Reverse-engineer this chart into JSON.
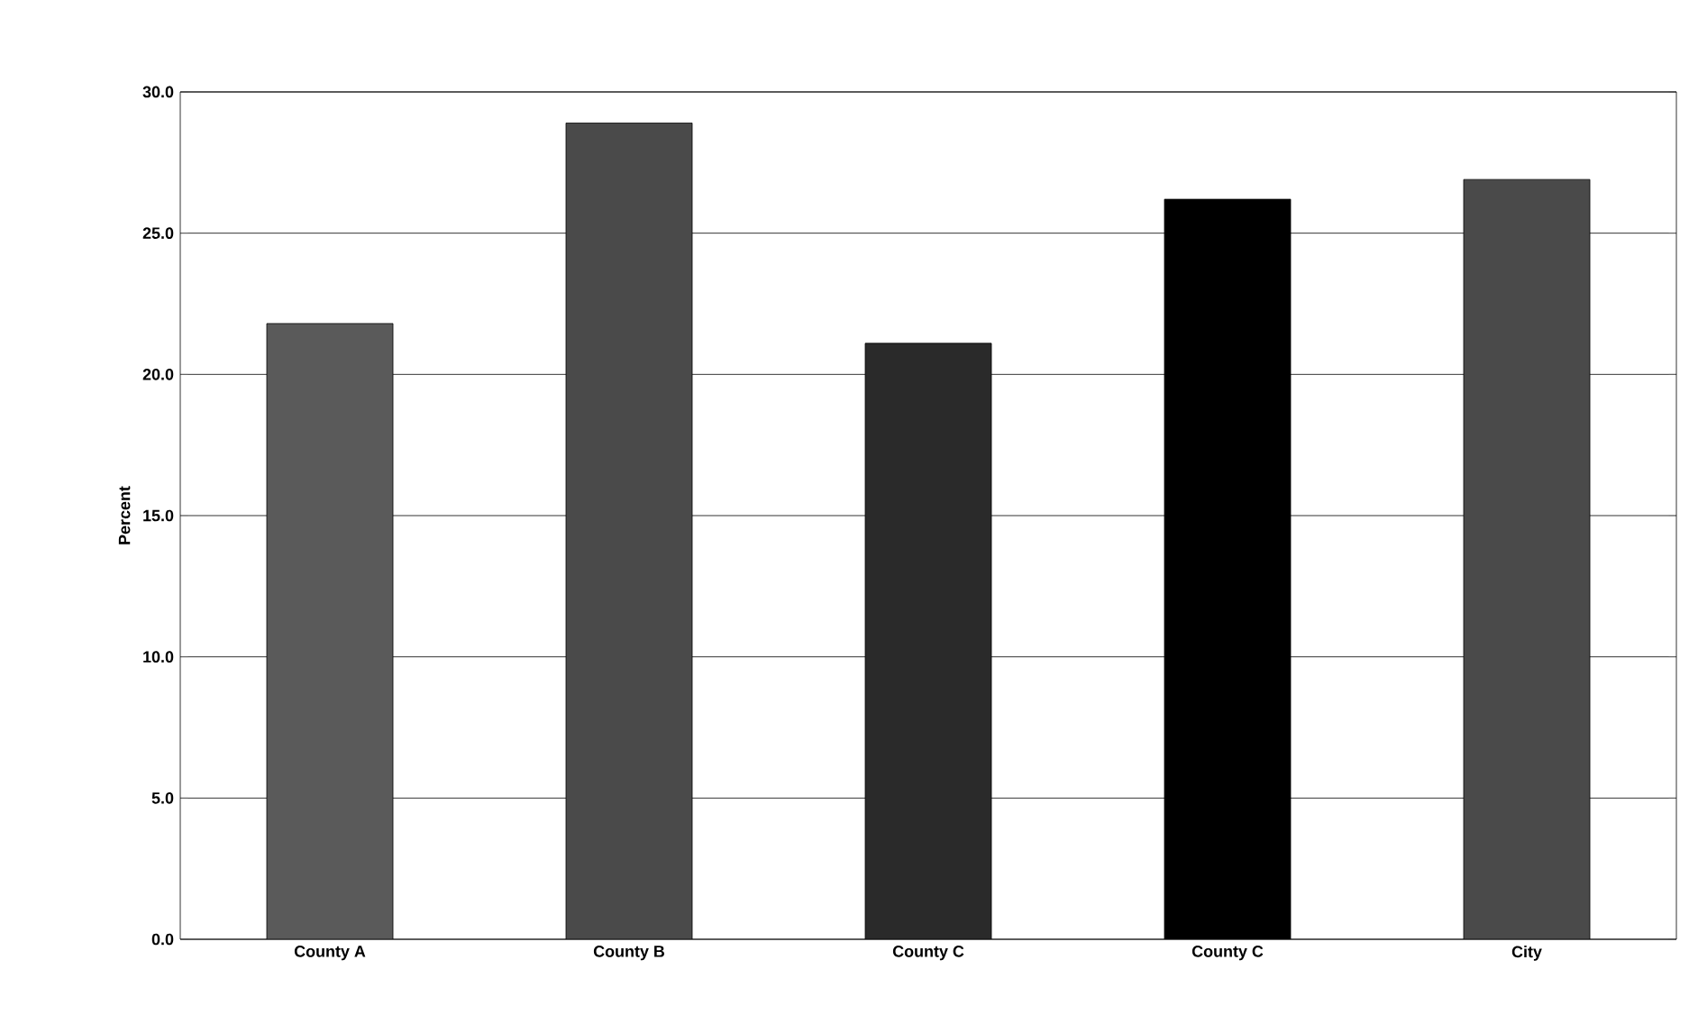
{
  "chart_data": {
    "type": "bar",
    "ylabel": "Percent",
    "categories": [
      "County A",
      "County B",
      "County C",
      "County C",
      "City"
    ],
    "values": [
      21.8,
      28.9,
      21.1,
      26.2,
      26.9
    ],
    "colors": [
      "#5a5a5a",
      "#4a4a4a",
      "#2a2a2a",
      "#000000",
      "#4a4a4a"
    ],
    "ylim": [
      0,
      30
    ],
    "yticks": [
      {
        "value": 0,
        "label": "0.0"
      },
      {
        "value": 5,
        "label": "5.0"
      },
      {
        "value": 10,
        "label": "10.0"
      },
      {
        "value": 15,
        "label": "15.0"
      },
      {
        "value": 20,
        "label": "20.0"
      },
      {
        "value": 25,
        "label": "25.0"
      },
      {
        "value": 30,
        "label": "30.0"
      }
    ],
    "grid": "y"
  }
}
